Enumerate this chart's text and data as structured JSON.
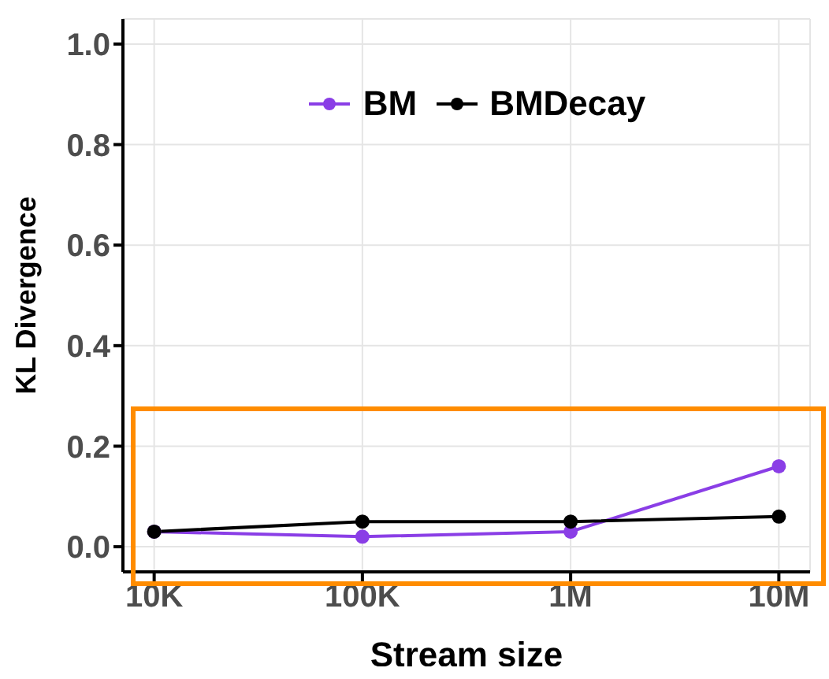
{
  "chart_data": {
    "type": "line",
    "xlabel": "Stream size",
    "ylabel": "KL Divergence",
    "categories": [
      "10K",
      "100K",
      "1M",
      "10M"
    ],
    "series": [
      {
        "name": "BM",
        "color": "#8a3ee6",
        "values": [
          0.03,
          0.02,
          0.03,
          0.16
        ]
      },
      {
        "name": "BMDecay",
        "color": "#000000",
        "values": [
          0.03,
          0.05,
          0.05,
          0.06
        ]
      }
    ],
    "ylim": [
      -0.05,
      1.05
    ],
    "yticks": [
      {
        "value": 0,
        "label": "0.0"
      },
      {
        "value": 0.2,
        "label": "0.2"
      },
      {
        "value": 0.4,
        "label": "0.4"
      },
      {
        "value": 0.6,
        "label": "0.6"
      },
      {
        "value": 0.8,
        "label": "0.8"
      },
      {
        "value": 1,
        "label": "1.0"
      }
    ],
    "grid": true,
    "legend": "top",
    "marker": "circle",
    "line_style": "solid"
  }
}
